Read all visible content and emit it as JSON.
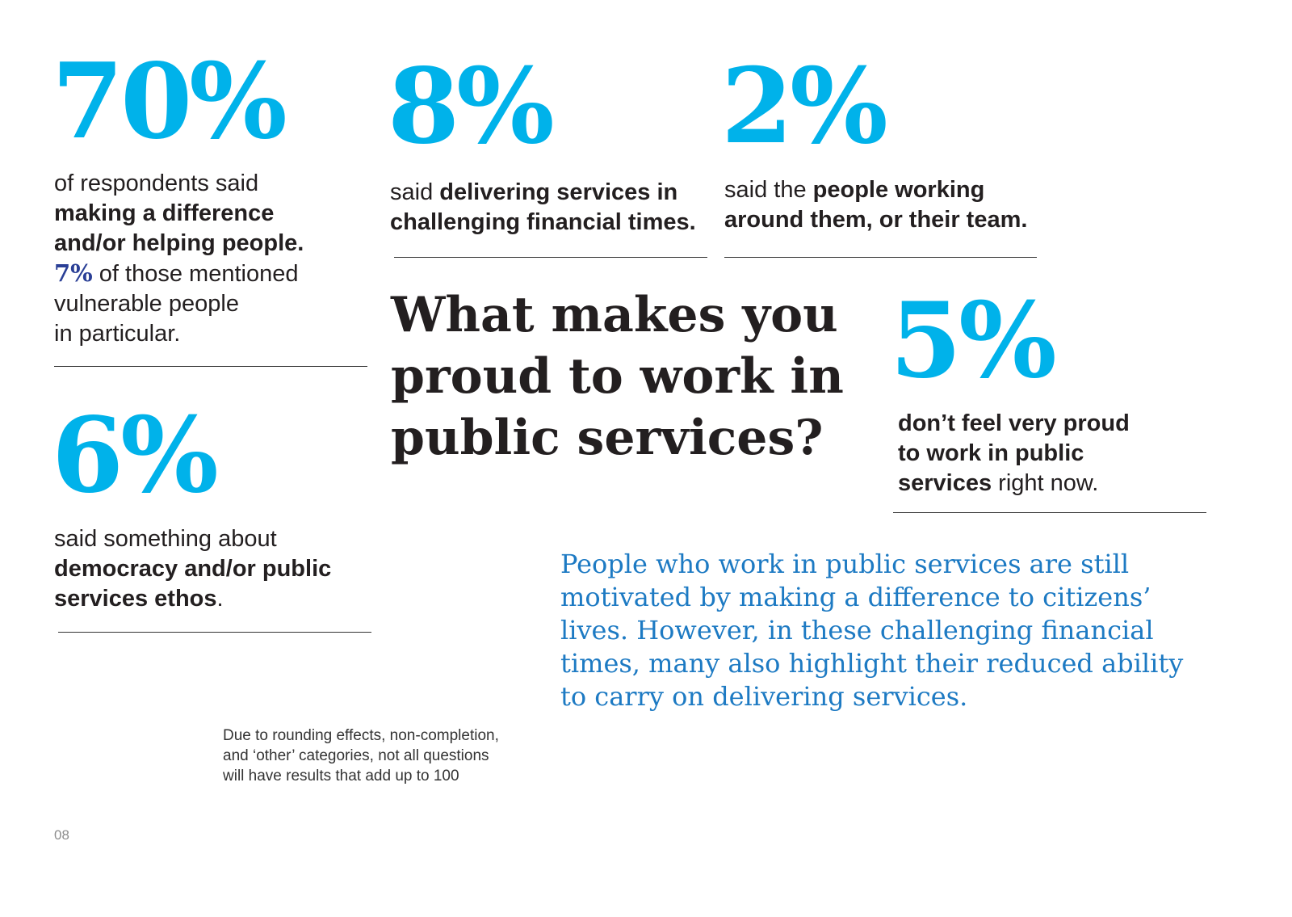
{
  "colors": {
    "accent": "#00b2ea",
    "highlight": "#2a3f96",
    "summary": "#1d7ac3",
    "text": "#231f20"
  },
  "stat_70": {
    "value": "70%",
    "line1": "of respondents said",
    "line2": "making a difference",
    "line3": "and/or helping people.",
    "line4_highlight": "7%",
    "line4_rest": " of those mentioned",
    "line5": "vulnerable people",
    "line6": "in particular."
  },
  "stat_8": {
    "value": "8%",
    "line1_plain": "said ",
    "line1_bold": "delivering services in",
    "line2_bold": "challenging financial times."
  },
  "stat_2": {
    "value": "2%",
    "line1_plain": "said the ",
    "line1_bold": "people working",
    "line2_bold": "around them, or their team."
  },
  "stat_6": {
    "value": "6%",
    "line1": "said something about",
    "line2_bold": "democracy and/or public",
    "line3_bold": "services ethos",
    "line3_rest": "."
  },
  "stat_5": {
    "value": "5%",
    "line1_bold": "don’t feel very proud",
    "line2_bold": "to work in public",
    "line3_bold": "services",
    "line3_rest": " right now."
  },
  "question": {
    "line1": "What makes you",
    "line2": "proud to work in",
    "line3": "public services?"
  },
  "summary": {
    "line1": "People who work in public services are still",
    "line2": "motivated by making a difference to citizens’",
    "line3": "lives. However, in these challenging financial",
    "line4": "times, many also highlight their reduced ability",
    "line5": "to carry on delivering services."
  },
  "footnote": {
    "line1": "Due to rounding effects, non-completion,",
    "line2": "and ‘other’ categories, not all questions",
    "line3": "will have results that add up to 100"
  },
  "page_number": "08"
}
